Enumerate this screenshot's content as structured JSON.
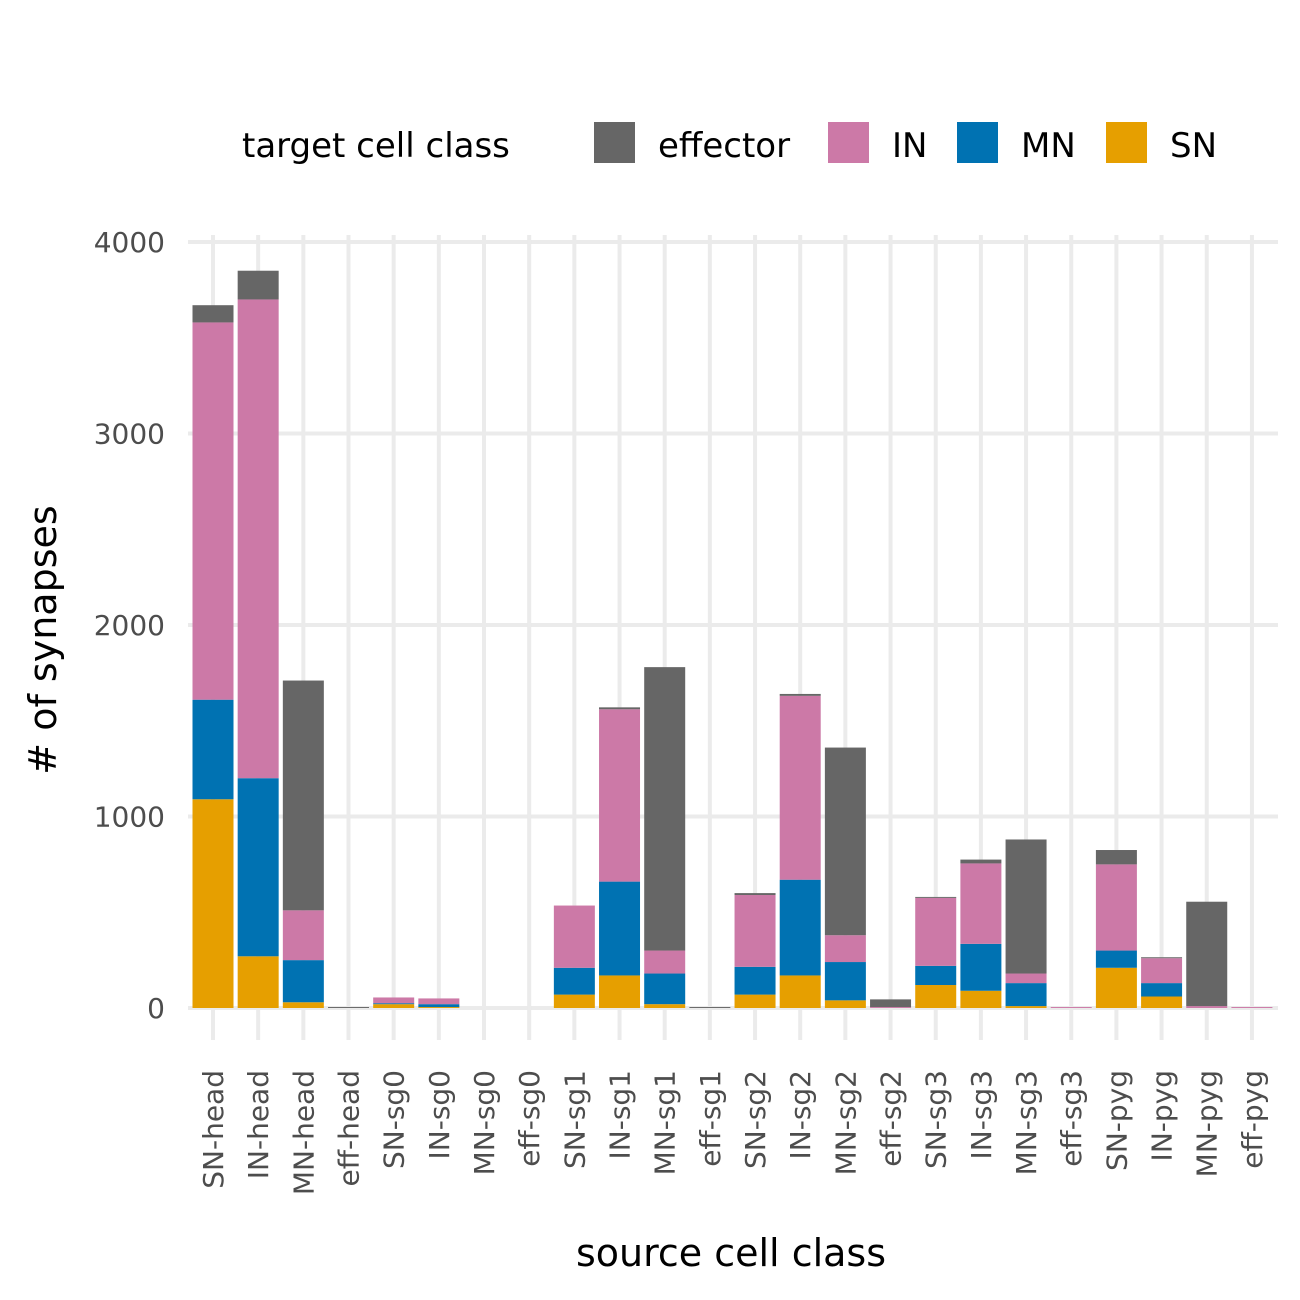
{
  "chart_data": {
    "type": "bar",
    "stacked": true,
    "xlabel": "source cell class",
    "ylabel": "# of synapses",
    "ylim": [
      -160,
      4000
    ],
    "yticks": [
      0,
      1000,
      2000,
      3000,
      4000
    ],
    "grid": true,
    "legend": {
      "title": "target cell class",
      "placement": "top",
      "items": [
        {
          "name": "effector",
          "color": "#666666"
        },
        {
          "name": "IN",
          "color": "#CC79A7"
        },
        {
          "name": "MN",
          "color": "#0072B2"
        },
        {
          "name": "SN",
          "color": "#E69F00"
        }
      ]
    },
    "categories": [
      "SN-head",
      "IN-head",
      "MN-head",
      "eff-head",
      "SN-sg0",
      "IN-sg0",
      "MN-sg0",
      "eff-sg0",
      "SN-sg1",
      "IN-sg1",
      "MN-sg1",
      "eff-sg1",
      "SN-sg2",
      "IN-sg2",
      "MN-sg2",
      "eff-sg2",
      "SN-sg3",
      "IN-sg3",
      "MN-sg3",
      "eff-sg3",
      "SN-pyg",
      "IN-pyg",
      "MN-pyg",
      "eff-pyg"
    ],
    "stack_order": [
      "SN",
      "MN",
      "IN",
      "effector"
    ],
    "series": [
      {
        "name": "SN",
        "color": "#E69F00",
        "values": [
          1090,
          270,
          30,
          0,
          20,
          5,
          0,
          0,
          70,
          170,
          20,
          0,
          70,
          170,
          40,
          0,
          120,
          90,
          10,
          0,
          210,
          60,
          0,
          0
        ]
      },
      {
        "name": "MN",
        "color": "#0072B2",
        "values": [
          520,
          930,
          220,
          0,
          5,
          15,
          0,
          0,
          140,
          490,
          160,
          0,
          145,
          500,
          200,
          0,
          100,
          245,
          120,
          0,
          90,
          70,
          0,
          0
        ]
      },
      {
        "name": "IN",
        "color": "#CC79A7",
        "values": [
          1970,
          2500,
          260,
          0,
          30,
          30,
          0,
          0,
          325,
          900,
          120,
          0,
          375,
          960,
          140,
          5,
          355,
          420,
          50,
          5,
          450,
          130,
          10,
          5
        ]
      },
      {
        "name": "effector",
        "color": "#666666",
        "values": [
          90,
          150,
          1200,
          5,
          0,
          0,
          0,
          0,
          0,
          10,
          1480,
          5,
          10,
          10,
          980,
          40,
          5,
          20,
          700,
          0,
          75,
          5,
          545,
          0
        ]
      }
    ]
  }
}
